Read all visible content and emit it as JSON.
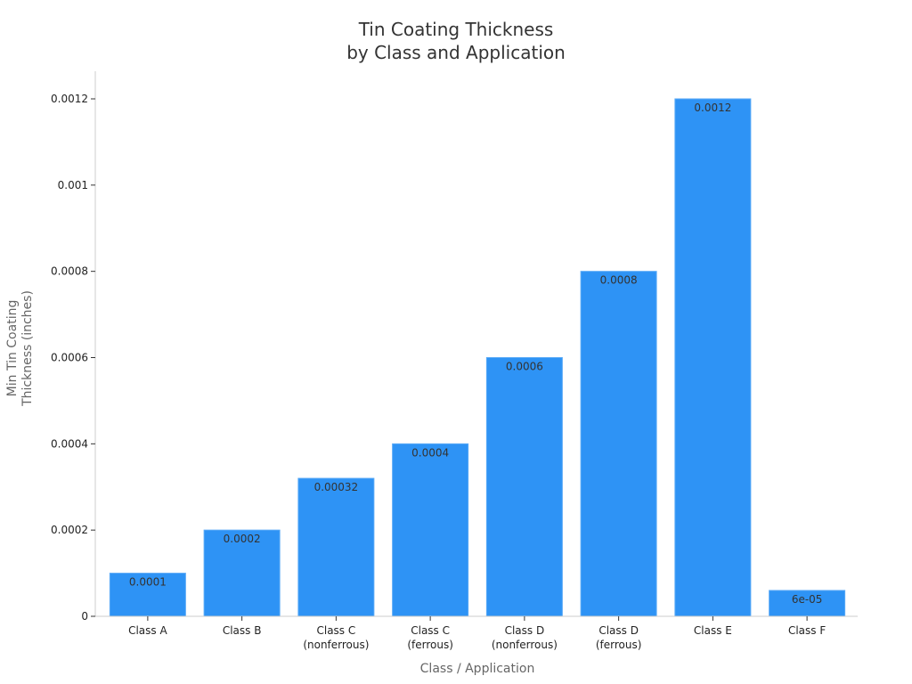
{
  "chart_data": {
    "type": "bar",
    "title": [
      "Tin Coating Thickness",
      "by Class and Application"
    ],
    "xlabel": "Class / Application",
    "ylabel": [
      "Min Tin Coating",
      "Thickness (inches)"
    ],
    "categories": [
      [
        "Class A"
      ],
      [
        "Class B"
      ],
      [
        "Class C",
        "(nonferrous)"
      ],
      [
        "Class C",
        "(ferrous)"
      ],
      [
        "Class D",
        "(nonferrous)"
      ],
      [
        "Class D",
        "(ferrous)"
      ],
      [
        "Class E"
      ],
      [
        "Class F"
      ]
    ],
    "values": [
      0.0001,
      0.0002,
      0.00032,
      0.0004,
      0.0006,
      0.0008,
      0.0012,
      6e-05
    ],
    "value_labels": [
      "0.0001",
      "0.0002",
      "0.00032",
      "0.0004",
      "0.0006",
      "0.0008",
      "0.0012",
      "6e-05"
    ],
    "yticks": [
      0,
      0.0002,
      0.0004,
      0.0006,
      0.0008,
      0.001,
      0.0012
    ],
    "ytick_labels": [
      "0",
      "0.0002",
      "0.0004",
      "0.0006",
      "0.0008",
      "0.001",
      "0.0012"
    ],
    "ylim": [
      0,
      0.00126
    ],
    "grid": false,
    "legend": "none",
    "colors": {
      "bar": "#2e93f5",
      "bar_edge": "#5aaaf7",
      "axis": "#cccccc"
    }
  }
}
